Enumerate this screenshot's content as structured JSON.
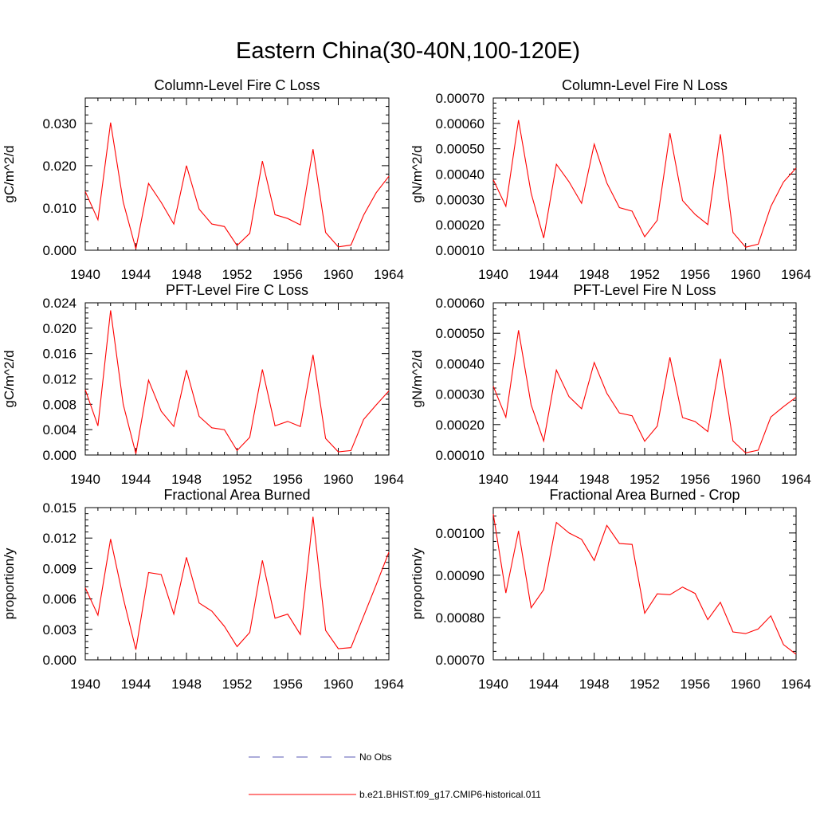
{
  "figure": {
    "title": "Eastern China(30-40N,100-120E)",
    "legend": [
      {
        "label": "No Obs",
        "color": "#5a5ab4",
        "dash": true
      },
      {
        "label": "b.e21.BHIST.f09_g17.CMIP6-historical.011",
        "color": "#ff0000",
        "dash": false
      }
    ]
  },
  "chart_data": [
    {
      "type": "line",
      "title": "Column-Level Fire C Loss",
      "ylabel": "gC/m^2/d",
      "xlim": [
        1940,
        1964
      ],
      "ylim": [
        0,
        0.036
      ],
      "xticks": [
        "1940",
        "1944",
        "1948",
        "1952",
        "1956",
        "1960",
        "1964"
      ],
      "yticks": [
        "0.000",
        "0.010",
        "0.020",
        "0.030"
      ],
      "x": [
        1940,
        1941,
        1942,
        1943,
        1944,
        1945,
        1946,
        1947,
        1948,
        1949,
        1950,
        1951,
        1952,
        1953,
        1954,
        1955,
        1956,
        1957,
        1958,
        1959,
        1960,
        1961,
        1962,
        1963,
        1964
      ],
      "series": [
        {
          "color": "#ff0000",
          "values": [
            0.0139,
            0.0072,
            0.0302,
            0.0114,
            0.0003,
            0.0158,
            0.0113,
            0.0062,
            0.02,
            0.0097,
            0.0062,
            0.0056,
            0.0011,
            0.004,
            0.0211,
            0.0084,
            0.0075,
            0.006,
            0.0239,
            0.0042,
            0.0008,
            0.0012,
            0.0083,
            0.0136,
            0.0175
          ]
        }
      ]
    },
    {
      "type": "line",
      "title": "Column-Level Fire N Loss",
      "ylabel": "gN/m^2/d",
      "xlim": [
        1940,
        1964
      ],
      "ylim": [
        0.0001,
        0.0007
      ],
      "xticks": [
        "1940",
        "1944",
        "1948",
        "1952",
        "1956",
        "1960",
        "1964"
      ],
      "yticks": [
        "0.00010",
        "0.00020",
        "0.00030",
        "0.00040",
        "0.00050",
        "0.00060",
        "0.00070"
      ],
      "x": [
        1940,
        1941,
        1942,
        1943,
        1944,
        1945,
        1946,
        1947,
        1948,
        1949,
        1950,
        1951,
        1952,
        1953,
        1954,
        1955,
        1956,
        1957,
        1958,
        1959,
        1960,
        1961,
        1962,
        1963,
        1964
      ],
      "series": [
        {
          "color": "#ff0000",
          "values": [
            0.000378,
            0.000273,
            0.000613,
            0.000325,
            0.000148,
            0.000439,
            0.00037,
            0.000285,
            0.000518,
            0.000365,
            0.000268,
            0.000254,
            0.000153,
            0.000218,
            0.000561,
            0.000296,
            0.000241,
            0.000201,
            0.000557,
            0.00017,
            0.000112,
            0.000124,
            0.000272,
            0.000369,
            0.000424
          ]
        }
      ]
    },
    {
      "type": "line",
      "title": "PFT-Level Fire C Loss",
      "ylabel": "gC/m^2/d",
      "xlim": [
        1940,
        1964
      ],
      "ylim": [
        0,
        0.024
      ],
      "xticks": [
        "1940",
        "1944",
        "1948",
        "1952",
        "1956",
        "1960",
        "1964"
      ],
      "yticks": [
        "0.000",
        "0.004",
        "0.008",
        "0.012",
        "0.016",
        "0.020",
        "0.024"
      ],
      "x": [
        1940,
        1941,
        1942,
        1943,
        1944,
        1945,
        1946,
        1947,
        1948,
        1949,
        1950,
        1951,
        1952,
        1953,
        1954,
        1955,
        1956,
        1957,
        1958,
        1959,
        1960,
        1961,
        1962,
        1963,
        1964
      ],
      "series": [
        {
          "color": "#ff0000",
          "values": [
            0.0103,
            0.0046,
            0.0228,
            0.008,
            0.0002,
            0.0118,
            0.0069,
            0.0045,
            0.0134,
            0.0061,
            0.0043,
            0.004,
            0.0007,
            0.0028,
            0.0135,
            0.0046,
            0.0053,
            0.0045,
            0.0158,
            0.0026,
            0.0005,
            0.0007,
            0.0056,
            0.0079,
            0.0101
          ]
        }
      ]
    },
    {
      "type": "line",
      "title": "PFT-Level Fire N Loss",
      "ylabel": "gN/m^2/d",
      "xlim": [
        1940,
        1964
      ],
      "ylim": [
        0.0001,
        0.0006
      ],
      "xticks": [
        "1940",
        "1944",
        "1948",
        "1952",
        "1956",
        "1960",
        "1964"
      ],
      "yticks": [
        "0.00010",
        "0.00020",
        "0.00030",
        "0.00040",
        "0.00050",
        "0.00060"
      ],
      "x": [
        1940,
        1941,
        1942,
        1943,
        1944,
        1945,
        1946,
        1947,
        1948,
        1949,
        1950,
        1951,
        1952,
        1953,
        1954,
        1955,
        1956,
        1957,
        1958,
        1959,
        1960,
        1961,
        1962,
        1963,
        1964
      ],
      "series": [
        {
          "color": "#ff0000",
          "values": [
            0.000326,
            0.000224,
            0.00051,
            0.000265,
            0.000146,
            0.000379,
            0.000292,
            0.000252,
            0.000404,
            0.000303,
            0.000238,
            0.000229,
            0.000145,
            0.000195,
            0.000421,
            0.000223,
            0.00021,
            0.000177,
            0.000416,
            0.000146,
            0.000107,
            0.000116,
            0.000225,
            0.000259,
            0.00029
          ]
        }
      ]
    },
    {
      "type": "line",
      "title": "Fractional Area Burned",
      "ylabel": "proportion/y",
      "xlim": [
        1940,
        1964
      ],
      "ylim": [
        0,
        0.015
      ],
      "xticks": [
        "1940",
        "1944",
        "1948",
        "1952",
        "1956",
        "1960",
        "1964"
      ],
      "yticks": [
        "0.000",
        "0.003",
        "0.006",
        "0.009",
        "0.012",
        "0.015"
      ],
      "x": [
        1940,
        1941,
        1942,
        1943,
        1944,
        1945,
        1946,
        1947,
        1948,
        1949,
        1950,
        1951,
        1952,
        1953,
        1954,
        1955,
        1956,
        1957,
        1958,
        1959,
        1960,
        1961,
        1962,
        1963,
        1964
      ],
      "series": [
        {
          "color": "#ff0000",
          "values": [
            0.0071,
            0.0044,
            0.0119,
            0.0061,
            0.001,
            0.0086,
            0.0084,
            0.0045,
            0.0101,
            0.0056,
            0.0048,
            0.0033,
            0.0013,
            0.0027,
            0.0098,
            0.0041,
            0.0045,
            0.0025,
            0.0141,
            0.0029,
            0.0011,
            0.0012,
            0.0043,
            0.0074,
            0.0106
          ]
        }
      ]
    },
    {
      "type": "line",
      "title": "Fractional Area Burned - Crop",
      "ylabel": "proportion/y",
      "xlim": [
        1940,
        1964
      ],
      "ylim": [
        0.0007,
        0.00106
      ],
      "xticks": [
        "1940",
        "1944",
        "1948",
        "1952",
        "1956",
        "1960",
        "1964"
      ],
      "yticks": [
        "0.00070",
        "0.00080",
        "0.00090",
        "0.00100"
      ],
      "x": [
        1940,
        1941,
        1942,
        1943,
        1944,
        1945,
        1946,
        1947,
        1948,
        1949,
        1950,
        1951,
        1952,
        1953,
        1954,
        1955,
        1956,
        1957,
        1958,
        1959,
        1960,
        1961,
        1962,
        1963,
        1964
      ],
      "series": [
        {
          "color": "#ff0000",
          "values": [
            0.001045,
            0.000858,
            0.001005,
            0.000823,
            0.000866,
            0.001025,
            0.001,
            0.000985,
            0.000935,
            0.001018,
            0.000975,
            0.000973,
            0.00081,
            0.000856,
            0.000854,
            0.000872,
            0.000857,
            0.000795,
            0.000836,
            0.000766,
            0.000762,
            0.000773,
            0.000804,
            0.000736,
            0.000713
          ]
        }
      ]
    }
  ]
}
